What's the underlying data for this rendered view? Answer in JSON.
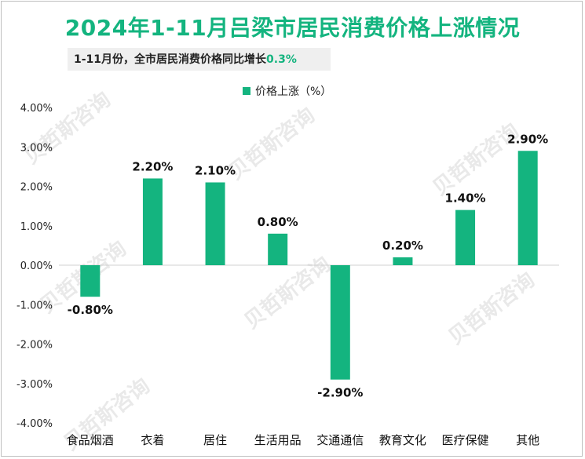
{
  "title": "2024年1-11月吕梁市居民消费价格上涨情况",
  "subtitle": {
    "prefix": "1-11月份，全市居民消费价格同比增长",
    "value": "0.3%"
  },
  "colors": {
    "accent": "#14b47f",
    "bar": "#14b47f"
  },
  "chart_data": {
    "type": "bar",
    "title": "2024年1-11月吕梁市居民消费价格上涨情况",
    "legend": "价格上涨（%）",
    "legend_position": "top-center",
    "categories": [
      "食品烟酒",
      "衣着",
      "居住",
      "生活用品",
      "交通通信",
      "教育文化",
      "医疗保健",
      "其他"
    ],
    "series": [
      {
        "name": "价格上涨（%）",
        "values": [
          -0.8,
          2.2,
          2.1,
          0.8,
          -2.9,
          0.2,
          1.4,
          2.9
        ]
      }
    ],
    "data_labels": [
      "-0.80%",
      "2.20%",
      "2.10%",
      "0.80%",
      "-2.90%",
      "0.20%",
      "1.40%",
      "2.90%"
    ],
    "ylim": [
      -4,
      4
    ],
    "yticks": [
      4,
      3,
      2,
      1,
      0,
      -1,
      -2,
      -3,
      -4
    ],
    "ytick_labels": [
      "4.00%",
      "3.00%",
      "2.00%",
      "1.00%",
      "0.00%",
      "-1.00%",
      "-2.00%",
      "-3.00%",
      "-4.00%"
    ],
    "grid": false,
    "xlabel": "",
    "ylabel": ""
  }
}
